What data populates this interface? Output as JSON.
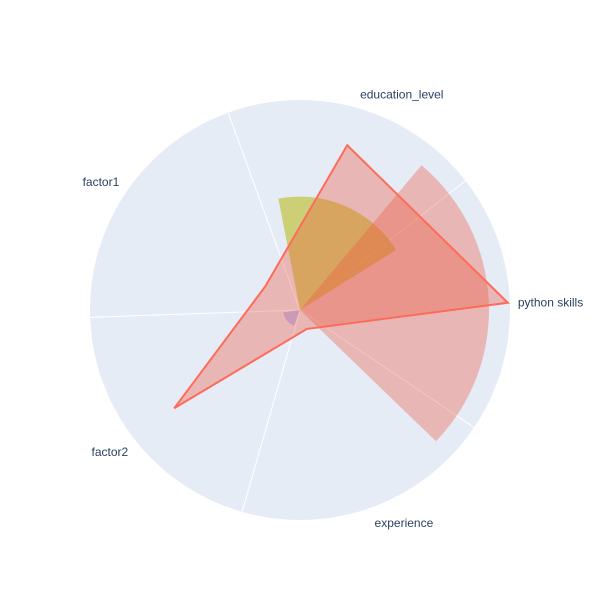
{
  "chart_data": {
    "type": "polar",
    "subtype": "radar-with-barpolar",
    "categories": [
      "python skills",
      "education_level",
      "factor1",
      "factor2",
      "experience"
    ],
    "radial_range": [
      0,
      5
    ],
    "grid": false,
    "series": [
      {
        "trace": "barpolar",
        "color": "#bcbd22",
        "opacity": 0.6,
        "values": [
          0,
          2.7,
          0,
          0,
          0
        ],
        "theta_start": [
          0,
          32,
          0,
          0,
          0
        ],
        "theta_end": [
          0,
          101,
          0,
          0,
          0
        ]
      },
      {
        "trace": "barpolar",
        "color": "#ef553b",
        "opacity": 0.35,
        "values": [
          4.5,
          0,
          0,
          0,
          0
        ],
        "theta_start": [
          -44,
          0,
          0,
          0,
          0
        ],
        "theta_end": [
          50,
          0,
          0,
          0,
          0
        ]
      },
      {
        "trace": "barpolar",
        "color": "#636efa",
        "opacity": 0.35,
        "values": [
          0,
          0,
          0,
          0.4,
          0
        ],
        "theta_start": [
          0,
          0,
          0,
          188,
          0
        ],
        "theta_end": [
          0,
          0,
          0,
          250,
          0
        ]
      },
      {
        "trace": "scatterpolar",
        "color": "#ef553b",
        "line_color": "#ff6b5a",
        "fill_opacity": 0.35,
        "values": [
          4.95,
          4.08,
          1.0,
          3.8,
          0.48
        ],
        "fill": "toself"
      }
    ]
  }
}
